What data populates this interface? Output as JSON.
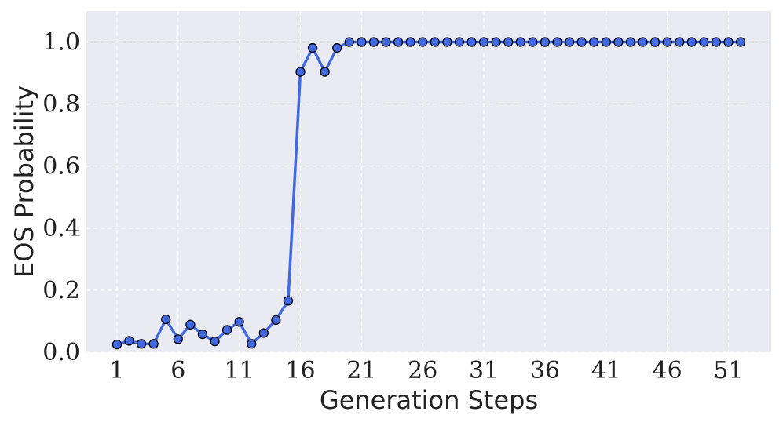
{
  "chart_data": {
    "type": "line",
    "title": "",
    "xlabel": "Generation Steps",
    "ylabel": "EOS Probability",
    "xlim": [
      -1.5,
      54.5
    ],
    "ylim": [
      0.0,
      1.1
    ],
    "xticks": [
      1,
      6,
      11,
      16,
      21,
      26,
      31,
      36,
      41,
      46,
      51
    ],
    "yticks": [
      0.0,
      0.2,
      0.4,
      0.6,
      0.8,
      1.0
    ],
    "ytick_labels": [
      "0.0",
      "0.2",
      "0.4",
      "0.6",
      "0.8",
      "1.0"
    ],
    "grid": true,
    "legend": "none",
    "series": [
      {
        "color": "#4169e1",
        "marker_edge": "#000000",
        "x": [
          1,
          2,
          3,
          4,
          5,
          6,
          7,
          8,
          9,
          10,
          11,
          12,
          13,
          14,
          15,
          16,
          17,
          18,
          19,
          20,
          21,
          22,
          23,
          24,
          25,
          26,
          27,
          28,
          29,
          30,
          31,
          32,
          33,
          34,
          35,
          36,
          37,
          38,
          39,
          40,
          41,
          42,
          43,
          44,
          45,
          46,
          47,
          48,
          49,
          50,
          51,
          52
        ],
        "y": [
          0.025,
          0.037,
          0.027,
          0.027,
          0.106,
          0.042,
          0.089,
          0.058,
          0.035,
          0.072,
          0.098,
          0.027,
          0.062,
          0.104,
          0.166,
          0.904,
          0.981,
          0.904,
          0.981,
          1.0,
          1.0,
          1.0,
          1.0,
          1.0,
          1.0,
          1.0,
          1.0,
          1.0,
          1.0,
          1.0,
          1.0,
          1.0,
          1.0,
          1.0,
          1.0,
          1.0,
          1.0,
          1.0,
          1.0,
          1.0,
          1.0,
          1.0,
          1.0,
          1.0,
          1.0,
          1.0,
          1.0,
          1.0,
          1.0,
          1.0,
          1.0,
          1.0
        ]
      }
    ],
    "background": "#eaeaf2",
    "grid_color": "#ffffff"
  }
}
